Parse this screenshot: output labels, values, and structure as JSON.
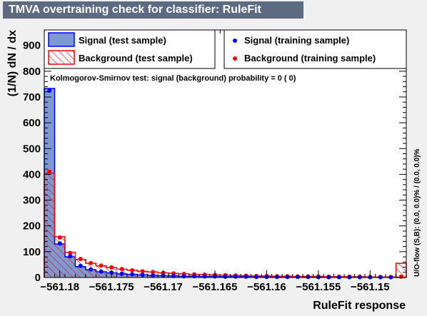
{
  "window_title": "TMVA overtraining check for classifier: RuleFit",
  "ks_text": "Kolmogorov-Smirnov test: signal (background) probability =     0 (    0)",
  "overflow_text": "U/O-flow (S,B): (0.0, 0.0)% / (0.0, 0.0)%",
  "colors": {
    "signal": "#0000ff",
    "signal_fill": "#7d99d1",
    "background": "#ff0000",
    "frame": "#000000"
  },
  "legend": {
    "left": [
      {
        "label": "Signal (test sample)",
        "style": "filled-box"
      },
      {
        "label": "Background (test sample)",
        "style": "hatched-box"
      }
    ],
    "right": [
      {
        "label": "Signal (training sample)",
        "style": "marker"
      },
      {
        "label": "Background (training sample)",
        "style": "marker"
      }
    ]
  },
  "chart_data": {
    "type": "bar",
    "title": "TMVA overtraining check for classifier: RuleFit",
    "xlabel": "RuleFit response",
    "ylabel": "(1/N) dN / dx",
    "xlim": [
      -561.1815,
      -561.1465
    ],
    "ylim": [
      0,
      960
    ],
    "xticks": [
      -561.18,
      -561.175,
      -561.17,
      -561.165,
      -561.16,
      -561.155,
      -561.15
    ],
    "xtick_labels": [
      "−561.18",
      "−561.175",
      "−561.17",
      "−561.165",
      "−561.16",
      "−561.155",
      "−561.15"
    ],
    "yticks": [
      0,
      100,
      200,
      300,
      400,
      500,
      600,
      700,
      800,
      900
    ],
    "ytick_labels": [
      "0",
      "100",
      "200",
      "300",
      "400",
      "500",
      "600",
      "700",
      "800",
      "900"
    ],
    "bin_width": 0.001,
    "series": [
      {
        "name": "Signal (test sample)",
        "style": "hist-filled",
        "values": [
          733,
          130,
          80,
          42,
          30,
          22,
          18,
          14,
          12,
          10,
          8,
          7,
          6,
          5,
          5,
          4,
          4,
          3,
          3,
          3,
          2,
          2,
          2,
          2,
          2,
          2,
          1,
          1,
          1,
          1,
          1,
          1,
          1,
          1,
          0
        ]
      },
      {
        "name": "Background (test sample)",
        "style": "hist-hatched",
        "values": [
          405,
          158,
          98,
          70,
          55,
          45,
          38,
          32,
          28,
          24,
          21,
          18,
          16,
          14,
          12,
          11,
          10,
          9,
          8,
          7,
          6,
          6,
          5,
          5,
          4,
          4,
          4,
          3,
          3,
          3,
          3,
          2,
          2,
          2,
          55
        ]
      },
      {
        "name": "Signal (training sample)",
        "style": "points",
        "values": [
          725,
          132,
          82,
          45,
          31,
          23,
          19,
          15,
          12,
          10,
          8,
          7,
          6,
          5,
          5,
          4,
          4,
          3,
          3,
          3,
          2,
          2,
          2,
          2,
          2,
          2,
          1,
          1,
          1,
          1,
          1,
          1,
          1,
          1,
          0
        ]
      },
      {
        "name": "Background (training sample)",
        "style": "points",
        "values": [
          410,
          155,
          95,
          72,
          56,
          46,
          39,
          33,
          28,
          24,
          21,
          18,
          16,
          14,
          12,
          11,
          10,
          9,
          8,
          7,
          6,
          6,
          5,
          5,
          4,
          4,
          4,
          3,
          3,
          3,
          3,
          2,
          2,
          2,
          3
        ]
      }
    ]
  }
}
